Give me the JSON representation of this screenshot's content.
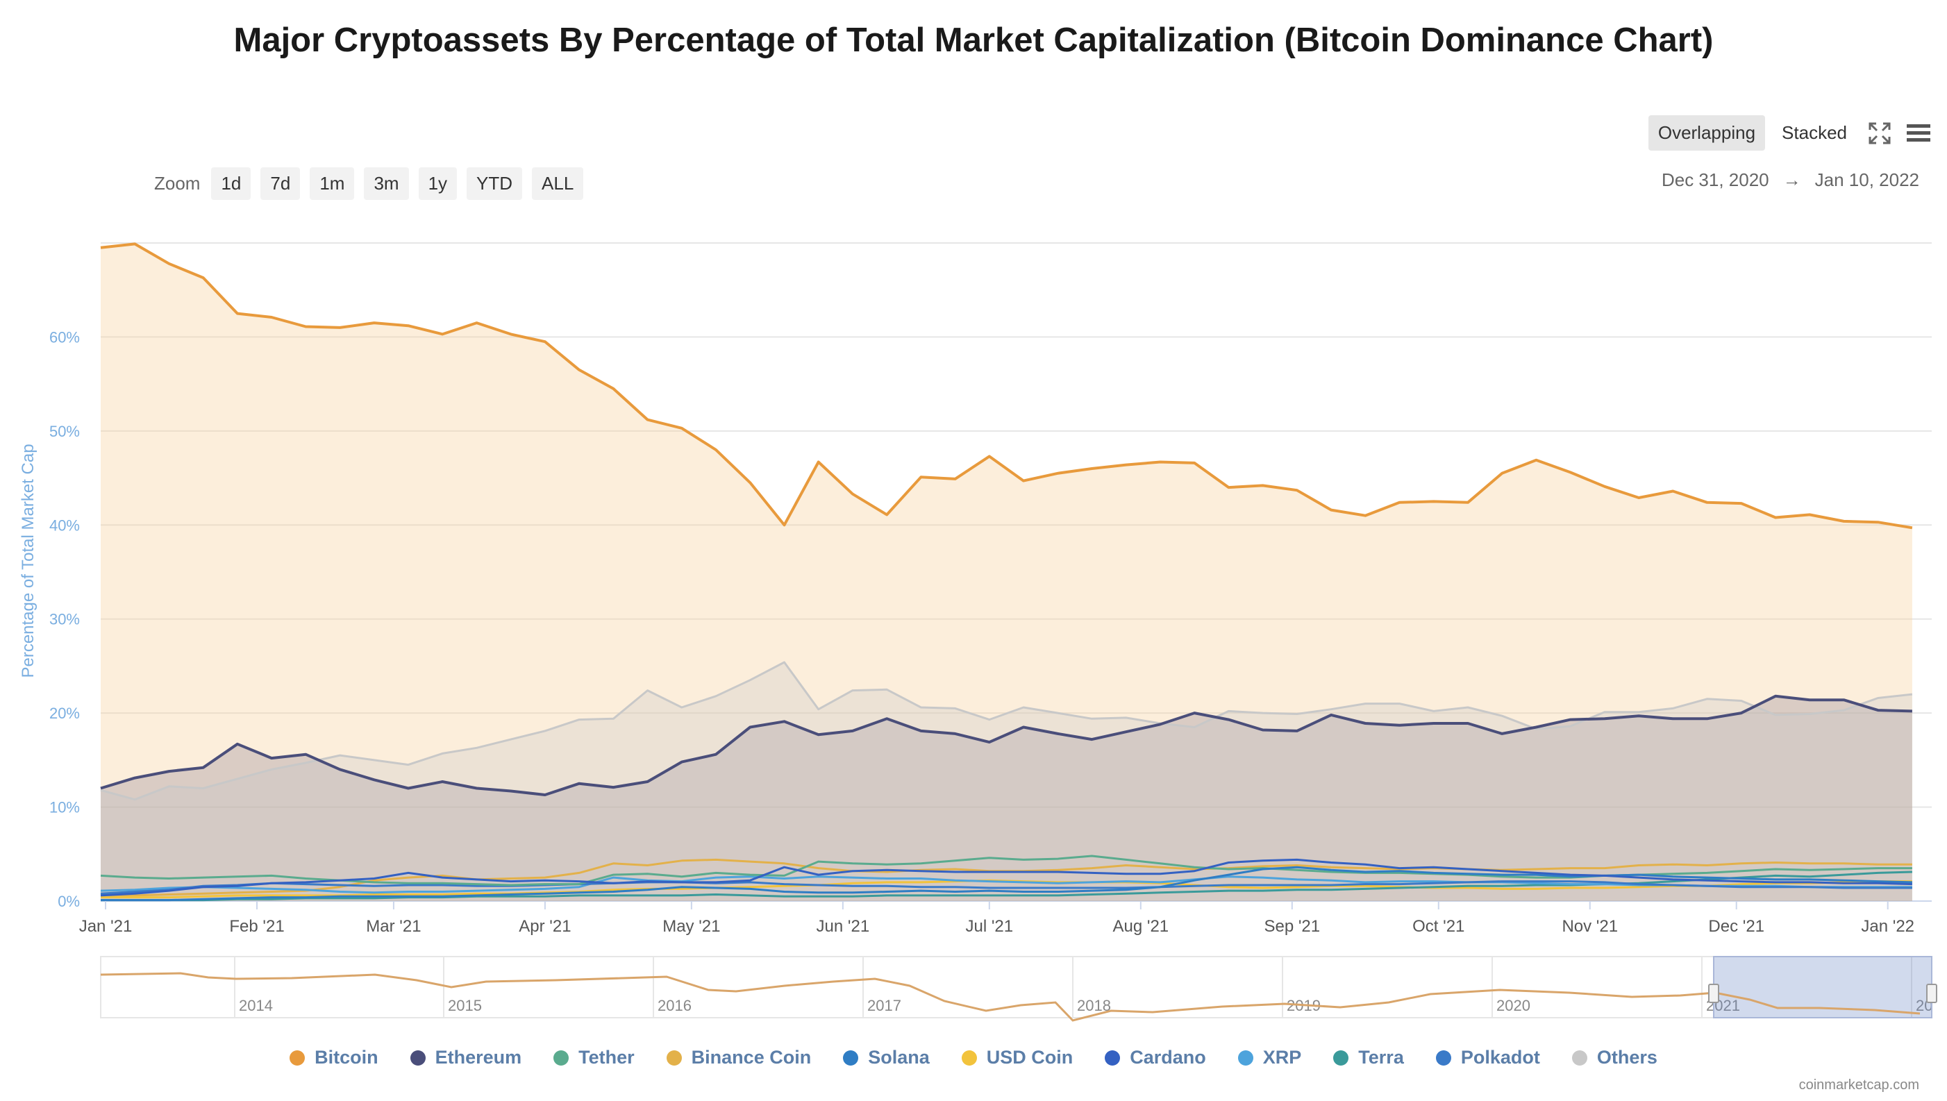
{
  "title": "Major Cryptoassets By Percentage of Total Market Capitalization (Bitcoin Dominance Chart)",
  "zoom": {
    "label": "Zoom",
    "buttons": [
      "1d",
      "7d",
      "1m",
      "3m",
      "1y",
      "YTD",
      "ALL"
    ]
  },
  "view_toggle": {
    "overlapping": "Overlapping",
    "stacked": "Stacked",
    "active": "Overlapping"
  },
  "icons": {
    "fullscreen": "fullscreen-icon",
    "menu": "menu-icon"
  },
  "date_range": {
    "start": "Dec 31, 2020",
    "arrow": "→",
    "end": "Jan 10, 2022"
  },
  "credit": "coinmarketcap.com",
  "navigator": {
    "labels": [
      "2014",
      "2015",
      "2016",
      "2017",
      "2018",
      "2019",
      "2020",
      "2021",
      "20"
    ]
  },
  "chart_data": {
    "type": "area",
    "ylabel": "Percentage of Total Market Cap",
    "ylim": [
      0,
      70
    ],
    "yticks": [
      "0%",
      "10%",
      "20%",
      "30%",
      "40%",
      "50%",
      "60%"
    ],
    "xticks": [
      "Jan '21",
      "Feb '21",
      "Mar '21",
      "Apr '21",
      "May '21",
      "Jun '21",
      "Jul '21",
      "Aug '21",
      "Sep '21",
      "Oct '21",
      "Nov '21",
      "Dec '21",
      "Jan '22"
    ],
    "x_start": "2020-12-31",
    "x_end": "2022-01-10",
    "x_step_days": 7,
    "grid": true,
    "legend_position": "bottom",
    "series": [
      {
        "name": "Bitcoin",
        "color": "#e89a3c",
        "fill": true,
        "values": [
          69.5,
          69.9,
          67.8,
          66.3,
          62.5,
          62.1,
          61.1,
          61.0,
          61.5,
          61.2,
          60.3,
          61.5,
          60.3,
          59.5,
          56.5,
          54.5,
          51.2,
          50.3,
          48.0,
          44.5,
          40.0,
          46.7,
          43.3,
          41.1,
          45.1,
          44.9,
          47.3,
          44.7,
          45.5,
          46.0,
          46.4,
          46.7,
          46.6,
          44.0,
          44.2,
          43.7,
          41.6,
          41.0,
          42.4,
          42.5,
          42.4,
          45.5,
          46.9,
          45.6,
          44.1,
          42.9,
          43.6,
          42.4,
          42.3,
          40.8,
          41.1,
          40.4,
          40.3,
          39.7
        ]
      },
      {
        "name": "Ethereum",
        "color": "#4a4e7a",
        "fill": true,
        "values": [
          12.0,
          13.1,
          13.8,
          14.2,
          16.7,
          15.2,
          15.6,
          14.0,
          12.9,
          12.0,
          12.7,
          12.0,
          11.7,
          11.3,
          12.5,
          12.1,
          12.7,
          14.8,
          15.6,
          18.5,
          19.1,
          17.7,
          18.1,
          19.4,
          18.1,
          17.8,
          16.9,
          18.5,
          17.8,
          17.2,
          18.0,
          18.8,
          20.0,
          19.3,
          18.2,
          18.1,
          19.8,
          18.9,
          18.7,
          18.9,
          18.9,
          17.8,
          18.5,
          19.3,
          19.4,
          19.7,
          19.4,
          19.4,
          20.0,
          21.8,
          21.4,
          21.4,
          20.3,
          20.2
        ]
      },
      {
        "name": "Tether",
        "color": "#5aab8e",
        "fill": false,
        "values": [
          2.7,
          2.5,
          2.4,
          2.5,
          2.6,
          2.7,
          2.4,
          2.2,
          2.0,
          1.9,
          1.9,
          1.8,
          1.7,
          1.8,
          1.8,
          2.8,
          2.9,
          2.6,
          3.0,
          2.8,
          2.7,
          4.2,
          4.0,
          3.9,
          4.0,
          4.3,
          4.6,
          4.4,
          4.5,
          4.8,
          4.4,
          4.0,
          3.6,
          3.4,
          3.5,
          3.3,
          3.1,
          3.0,
          3.0,
          2.9,
          2.8,
          2.6,
          2.5,
          2.5,
          2.7,
          2.8,
          2.9,
          3.0,
          3.2,
          3.4,
          3.3,
          3.4,
          3.5,
          3.5
        ]
      },
      {
        "name": "Binance Coin",
        "color": "#e3b14a",
        "fill": false,
        "values": [
          0.6,
          0.6,
          0.7,
          0.8,
          0.9,
          1.0,
          1.1,
          1.5,
          2.2,
          2.5,
          2.7,
          2.3,
          2.4,
          2.5,
          3.0,
          4.0,
          3.8,
          4.3,
          4.4,
          4.2,
          4.0,
          3.5,
          3.2,
          3.1,
          3.3,
          3.4,
          3.2,
          3.2,
          3.3,
          3.5,
          3.8,
          3.6,
          3.4,
          3.5,
          3.7,
          3.8,
          3.6,
          3.5,
          3.4,
          3.5,
          3.4,
          3.3,
          3.4,
          3.5,
          3.5,
          3.8,
          3.9,
          3.8,
          4.0,
          4.1,
          4.0,
          4.0,
          3.9,
          3.9
        ]
      },
      {
        "name": "Solana",
        "color": "#2f7dc4",
        "fill": false,
        "values": [
          0.1,
          0.1,
          0.1,
          0.2,
          0.3,
          0.4,
          0.4,
          0.5,
          0.5,
          0.5,
          0.5,
          0.6,
          0.7,
          0.8,
          0.9,
          1.0,
          1.2,
          1.5,
          1.4,
          1.3,
          1.0,
          0.9,
          0.9,
          1.0,
          1.1,
          1.0,
          1.1,
          1.0,
          1.0,
          1.1,
          1.2,
          1.5,
          2.2,
          2.8,
          3.4,
          3.6,
          3.3,
          3.1,
          3.2,
          3.0,
          2.9,
          2.8,
          2.8,
          2.6,
          2.7,
          2.8,
          2.6,
          2.5,
          2.4,
          2.3,
          2.3,
          2.2,
          2.1,
          2.0
        ]
      },
      {
        "name": "USD Coin",
        "color": "#f2c33c",
        "fill": false,
        "values": [
          0.4,
          0.4,
          0.4,
          0.5,
          0.6,
          0.6,
          0.6,
          0.6,
          0.7,
          0.7,
          0.7,
          0.8,
          0.8,
          0.9,
          1.0,
          1.2,
          1.3,
          1.3,
          1.4,
          1.5,
          1.6,
          1.7,
          1.9,
          2.0,
          2.0,
          2.1,
          2.2,
          2.1,
          2.0,
          2.0,
          2.0,
          1.9,
          1.7,
          1.5,
          1.4,
          1.5,
          1.6,
          1.6,
          1.5,
          1.4,
          1.4,
          1.3,
          1.3,
          1.4,
          1.4,
          1.5,
          1.6,
          1.6,
          1.8,
          1.9,
          1.9,
          2.0,
          2.1,
          2.1
        ]
      },
      {
        "name": "Cardano",
        "color": "#3461c2",
        "fill": false,
        "values": [
          0.6,
          0.8,
          1.1,
          1.5,
          1.6,
          1.9,
          2.0,
          2.2,
          2.4,
          3.0,
          2.5,
          2.3,
          2.1,
          2.2,
          2.1,
          1.9,
          2.1,
          2.0,
          2.0,
          2.2,
          3.6,
          2.8,
          3.2,
          3.3,
          3.2,
          3.1,
          3.1,
          3.1,
          3.1,
          3.0,
          2.9,
          2.9,
          3.2,
          4.1,
          4.3,
          4.4,
          4.1,
          3.9,
          3.5,
          3.6,
          3.4,
          3.2,
          3.0,
          2.8,
          2.7,
          2.5,
          2.3,
          2.2,
          2.1,
          2.0,
          2.0,
          1.9,
          1.9,
          1.8
        ]
      },
      {
        "name": "XRP",
        "color": "#4da3dc",
        "fill": false,
        "values": [
          1.1,
          1.2,
          1.4,
          1.5,
          1.4,
          1.3,
          1.2,
          1.0,
          0.9,
          1.0,
          1.0,
          1.1,
          1.2,
          1.3,
          1.5,
          2.5,
          2.2,
          2.1,
          2.5,
          2.6,
          2.4,
          2.6,
          2.5,
          2.4,
          2.4,
          2.2,
          2.1,
          2.0,
          1.9,
          2.0,
          2.1,
          2.0,
          2.3,
          2.6,
          2.5,
          2.3,
          2.2,
          2.0,
          2.1,
          2.1,
          2.0,
          2.0,
          1.9,
          1.8,
          1.8,
          1.7,
          1.7,
          1.6,
          1.6,
          1.6,
          1.5,
          1.5,
          1.5,
          1.5
        ]
      },
      {
        "name": "Terra",
        "color": "#3a9a9a",
        "fill": false,
        "values": [
          0.1,
          0.1,
          0.1,
          0.1,
          0.2,
          0.2,
          0.3,
          0.3,
          0.3,
          0.4,
          0.4,
          0.5,
          0.5,
          0.5,
          0.6,
          0.6,
          0.6,
          0.6,
          0.7,
          0.6,
          0.5,
          0.5,
          0.5,
          0.6,
          0.6,
          0.6,
          0.6,
          0.6,
          0.6,
          0.7,
          0.8,
          0.9,
          1.0,
          1.1,
          1.1,
          1.2,
          1.2,
          1.3,
          1.4,
          1.5,
          1.6,
          1.6,
          1.7,
          1.7,
          1.8,
          1.9,
          2.1,
          2.3,
          2.5,
          2.7,
          2.6,
          2.8,
          3.0,
          3.1
        ]
      },
      {
        "name": "Polkadot",
        "color": "#3a7ac8",
        "fill": false,
        "values": [
          0.8,
          1.0,
          1.2,
          1.6,
          1.7,
          1.9,
          1.8,
          1.7,
          1.6,
          1.7,
          1.7,
          1.6,
          1.6,
          1.7,
          1.8,
          1.9,
          2.0,
          2.0,
          1.9,
          2.0,
          1.8,
          1.7,
          1.6,
          1.6,
          1.5,
          1.5,
          1.4,
          1.4,
          1.4,
          1.4,
          1.4,
          1.5,
          1.6,
          1.7,
          1.7,
          1.7,
          1.7,
          1.8,
          1.8,
          1.9,
          2.0,
          2.1,
          2.1,
          2.1,
          2.0,
          1.8,
          1.7,
          1.6,
          1.5,
          1.5,
          1.5,
          1.4,
          1.4,
          1.4
        ]
      },
      {
        "name": "Others",
        "color": "#c8c8c8",
        "fill": true,
        "values": [
          11.8,
          10.8,
          12.2,
          12.0,
          13.0,
          14.0,
          14.7,
          15.5,
          15.0,
          14.5,
          15.7,
          16.3,
          17.2,
          18.1,
          19.3,
          19.4,
          22.4,
          20.6,
          21.8,
          23.5,
          25.4,
          20.4,
          22.4,
          22.5,
          20.6,
          20.5,
          19.3,
          20.6,
          20.0,
          19.4,
          19.5,
          18.9,
          18.5,
          20.2,
          20.0,
          19.9,
          20.4,
          21.0,
          21.0,
          20.2,
          20.6,
          19.7,
          18.3,
          18.6,
          20.1,
          20.1,
          20.5,
          21.5,
          21.3,
          19.8,
          19.9,
          20.3,
          21.6,
          22.0
        ]
      }
    ]
  }
}
